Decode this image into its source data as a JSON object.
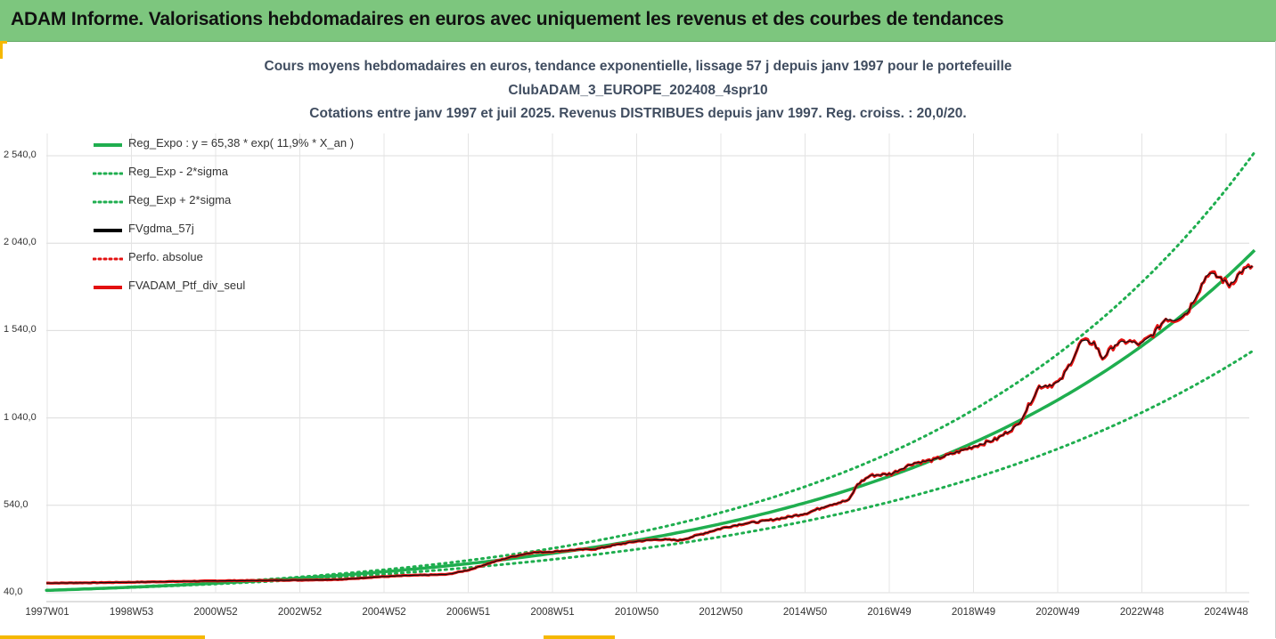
{
  "header": {
    "title": "ADAM Informe. Valorisations hebdomadaires en euros avec uniquement les revenus et des courbes de tendances"
  },
  "chart_data": {
    "type": "line",
    "title_lines": [
      "Cours moyens hebdomadaires  en euros, tendance exponentielle, lissage 57 j depuis janv 1997 pour le portefeuille",
      "ClubADAM_3_EUROPE_202408_4spr10",
      "Cotations  entre janv 1997 et juil 2025. Revenus DISTRIBUES depuis janv 1997. Reg. croiss. : 20,0/20."
    ],
    "y_ticks": [
      "2 540,0",
      "2 040,0",
      "1 540,0",
      "1 040,0",
      "540,0",
      "40,0"
    ],
    "y_tick_values": [
      2540,
      2040,
      1540,
      1040,
      540,
      40
    ],
    "ylim": [
      40,
      2750
    ],
    "x_ticks": [
      "1997W01",
      "1998W53",
      "2000W52",
      "2002W52",
      "2004W52",
      "2006W51",
      "2008W51",
      "2010W50",
      "2012W50",
      "2014W50",
      "2016W49",
      "2018W49",
      "2020W49",
      "2022W48",
      "2024W48"
    ],
    "x_tick_years": [
      1997.0,
      1999.0,
      2001.0,
      2003.0,
      2005.0,
      2007.0,
      2009.0,
      2011.0,
      2013.0,
      2015.0,
      2017.0,
      2019.0,
      2021.0,
      2023.0,
      2025.0
    ],
    "xlim": [
      1997.0,
      2025.6
    ],
    "grid": true,
    "legend_position": "top-left",
    "legend": [
      {
        "label": "Reg_Expo : y = 65,38 * exp( 11,9% *  X_an )",
        "style": "solid",
        "color": "#1fae4f"
      },
      {
        "label": "Reg_Exp - 2*sigma",
        "style": "dotted",
        "color": "#1fae4f"
      },
      {
        "label": "Reg_Exp + 2*sigma",
        "style": "dotted",
        "color": "#1fae4f"
      },
      {
        "label": "FVgdma_57j",
        "style": "solid",
        "color": "#000000"
      },
      {
        "label": "Perfo. absolue",
        "style": "dotted",
        "color": "#e31010"
      },
      {
        "label": "FVADAM_Ptf_div_seul",
        "style": "solid",
        "color": "#e31010"
      }
    ],
    "regression": {
      "a": 65.38,
      "rate": 0.119
    },
    "sigma_bands": {
      "upper_end": 2560,
      "lower_end": 1430
    },
    "series": [
      {
        "name": "FVADAM_Ptf_div_seul",
        "x": [
          1997.0,
          1998.0,
          1999.0,
          2000.0,
          2001.0,
          2002.0,
          2003.0,
          2004.0,
          2004.8,
          2005.5,
          2006.5,
          2007.0,
          2007.5,
          2008.0,
          2008.5,
          2009.0,
          2009.5,
          2010.0,
          2010.5,
          2011.0,
          2011.5,
          2012.0,
          2012.5,
          2013.0,
          2013.5,
          2014.0,
          2014.5,
          2015.0,
          2015.5,
          2016.0,
          2016.2,
          2016.5,
          2017.0,
          2017.5,
          2018.0,
          2018.5,
          2019.0,
          2019.5,
          2020.0,
          2020.3,
          2020.5,
          2020.8,
          2021.0,
          2021.3,
          2021.5,
          2021.8,
          2022.0,
          2022.3,
          2022.6,
          2022.9,
          2023.2,
          2023.5,
          2023.7,
          2024.0,
          2024.3,
          2024.5,
          2024.8,
          2025.0,
          2025.3,
          2025.55
        ],
        "y": [
          95,
          97,
          100,
          104,
          108,
          110,
          112,
          116,
          130,
          138,
          145,
          170,
          210,
          245,
          270,
          275,
          285,
          290,
          315,
          335,
          345,
          340,
          375,
          410,
          435,
          450,
          470,
          495,
          540,
          570,
          660,
          710,
          720,
          780,
          800,
          840,
          880,
          920,
          1000,
          1130,
          1220,
          1230,
          1250,
          1380,
          1480,
          1470,
          1380,
          1460,
          1480,
          1460,
          1520,
          1610,
          1600,
          1640,
          1780,
          1870,
          1840,
          1800,
          1880,
          1910
        ]
      }
    ]
  }
}
